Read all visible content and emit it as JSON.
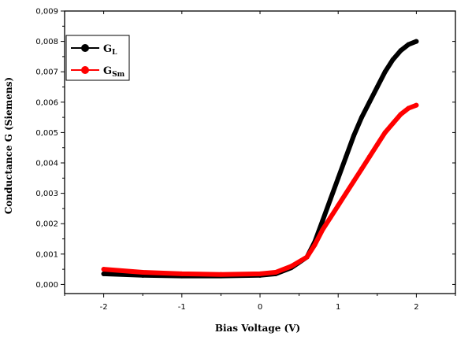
{
  "chart_data": {
    "type": "line",
    "xlabel": "Bias Voltage (V)",
    "ylabel": "Conductance G (Siemens)",
    "xlim": [
      -2.5,
      2.5
    ],
    "ylim": [
      -0.0003,
      0.009
    ],
    "x_ticks": [
      -2,
      -1,
      0,
      1,
      2
    ],
    "y_ticks": [
      0.0,
      0.001,
      0.002,
      0.003,
      0.004,
      0.005,
      0.006,
      0.007,
      0.008,
      0.009
    ],
    "x_tick_labels": [
      "-2",
      "-1",
      "0",
      "1",
      "2"
    ],
    "y_tick_labels": [
      "0,000",
      "0,001",
      "0,002",
      "0,003",
      "0,004",
      "0,005",
      "0,006",
      "0,007",
      "0,008",
      "0,009"
    ],
    "legend_position": "top-left",
    "grid": false,
    "series": [
      {
        "name": "G",
        "name_sub": "L",
        "color": "#000000",
        "x": [
          -2.0,
          -1.5,
          -1.0,
          -0.5,
          0.0,
          0.2,
          0.4,
          0.6,
          0.7,
          0.8,
          0.9,
          1.0,
          1.1,
          1.2,
          1.3,
          1.4,
          1.5,
          1.6,
          1.7,
          1.8,
          1.9,
          2.0
        ],
        "y": [
          0.00035,
          0.0003,
          0.00028,
          0.00028,
          0.0003,
          0.00035,
          0.00055,
          0.0009,
          0.0014,
          0.0021,
          0.0028,
          0.0035,
          0.0042,
          0.0049,
          0.0055,
          0.006,
          0.0065,
          0.007,
          0.0074,
          0.0077,
          0.0079,
          0.008
        ]
      },
      {
        "name": "G",
        "name_sub": "Sm",
        "color": "#ff0000",
        "x": [
          -2.0,
          -1.5,
          -1.0,
          -0.5,
          0.0,
          0.2,
          0.4,
          0.6,
          0.7,
          0.8,
          0.9,
          1.0,
          1.1,
          1.2,
          1.3,
          1.4,
          1.5,
          1.6,
          1.7,
          1.8,
          1.9,
          2.0
        ],
        "y": [
          0.0005,
          0.0004,
          0.00035,
          0.00033,
          0.00035,
          0.0004,
          0.0006,
          0.0009,
          0.0013,
          0.0018,
          0.0022,
          0.0026,
          0.003,
          0.0034,
          0.0038,
          0.0042,
          0.0046,
          0.005,
          0.0053,
          0.0056,
          0.0058,
          0.0059
        ]
      }
    ]
  }
}
